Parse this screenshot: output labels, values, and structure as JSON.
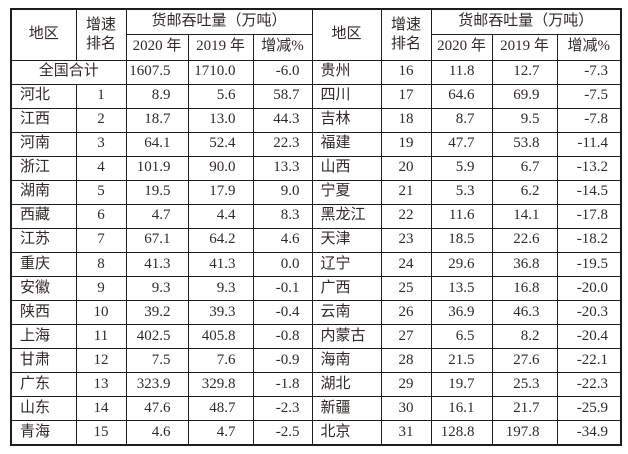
{
  "table": {
    "header": {
      "region": "地区",
      "rank_line1": "增速",
      "rank_line2": "排名",
      "group": "货邮吞吐量（万吨）",
      "col_2020": "2020 年",
      "col_2019": "2019 年",
      "col_change": "增减%"
    },
    "left_rows": [
      {
        "region": "全国合计",
        "rank": "",
        "v2020": "1607.5",
        "v2019": "1710.0",
        "chg": "-6.0",
        "merged": true
      },
      {
        "region": "河北",
        "rank": "1",
        "v2020": "8.9",
        "v2019": "5.6",
        "chg": "58.7"
      },
      {
        "region": "江西",
        "rank": "2",
        "v2020": "18.7",
        "v2019": "13.0",
        "chg": "44.3"
      },
      {
        "region": "河南",
        "rank": "3",
        "v2020": "64.1",
        "v2019": "52.4",
        "chg": "22.3"
      },
      {
        "region": "浙江",
        "rank": "4",
        "v2020": "101.9",
        "v2019": "90.0",
        "chg": "13.3"
      },
      {
        "region": "湖南",
        "rank": "5",
        "v2020": "19.5",
        "v2019": "17.9",
        "chg": "9.0"
      },
      {
        "region": "西藏",
        "rank": "6",
        "v2020": "4.7",
        "v2019": "4.4",
        "chg": "8.3"
      },
      {
        "region": "江苏",
        "rank": "7",
        "v2020": "67.1",
        "v2019": "64.2",
        "chg": "4.6"
      },
      {
        "region": "重庆",
        "rank": "8",
        "v2020": "41.3",
        "v2019": "41.3",
        "chg": "0.0"
      },
      {
        "region": "安徽",
        "rank": "9",
        "v2020": "9.3",
        "v2019": "9.3",
        "chg": "-0.1"
      },
      {
        "region": "陕西",
        "rank": "10",
        "v2020": "39.2",
        "v2019": "39.3",
        "chg": "-0.4"
      },
      {
        "region": "上海",
        "rank": "11",
        "v2020": "402.5",
        "v2019": "405.8",
        "chg": "-0.8"
      },
      {
        "region": "甘肃",
        "rank": "12",
        "v2020": "7.5",
        "v2019": "7.6",
        "chg": "-0.9"
      },
      {
        "region": "广东",
        "rank": "13",
        "v2020": "323.9",
        "v2019": "329.8",
        "chg": "-1.8"
      },
      {
        "region": "山东",
        "rank": "14",
        "v2020": "47.6",
        "v2019": "48.7",
        "chg": "-2.3"
      },
      {
        "region": "青海",
        "rank": "15",
        "v2020": "4.6",
        "v2019": "4.7",
        "chg": "-2.5"
      }
    ],
    "right_rows": [
      {
        "region": "贵州",
        "rank": "16",
        "v2020": "11.8",
        "v2019": "12.7",
        "chg": "-7.3"
      },
      {
        "region": "四川",
        "rank": "17",
        "v2020": "64.6",
        "v2019": "69.9",
        "chg": "-7.5"
      },
      {
        "region": "吉林",
        "rank": "18",
        "v2020": "8.7",
        "v2019": "9.5",
        "chg": "-7.8"
      },
      {
        "region": "福建",
        "rank": "19",
        "v2020": "47.7",
        "v2019": "53.8",
        "chg": "-11.4"
      },
      {
        "region": "山西",
        "rank": "20",
        "v2020": "5.9",
        "v2019": "6.7",
        "chg": "-13.2"
      },
      {
        "region": "宁夏",
        "rank": "21",
        "v2020": "5.3",
        "v2019": "6.2",
        "chg": "-14.5"
      },
      {
        "region": "黑龙江",
        "rank": "22",
        "v2020": "11.6",
        "v2019": "14.1",
        "chg": "-17.8"
      },
      {
        "region": "天津",
        "rank": "23",
        "v2020": "18.5",
        "v2019": "22.6",
        "chg": "-18.2"
      },
      {
        "region": "辽宁",
        "rank": "24",
        "v2020": "29.6",
        "v2019": "36.8",
        "chg": "-19.5"
      },
      {
        "region": "广西",
        "rank": "25",
        "v2020": "13.5",
        "v2019": "16.8",
        "chg": "-20.0"
      },
      {
        "region": "云南",
        "rank": "26",
        "v2020": "36.9",
        "v2019": "46.3",
        "chg": "-20.3"
      },
      {
        "region": "内蒙古",
        "rank": "27",
        "v2020": "6.5",
        "v2019": "8.2",
        "chg": "-20.4"
      },
      {
        "region": "海南",
        "rank": "28",
        "v2020": "21.5",
        "v2019": "27.6",
        "chg": "-22.1"
      },
      {
        "region": "湖北",
        "rank": "29",
        "v2020": "19.7",
        "v2019": "25.3",
        "chg": "-22.3"
      },
      {
        "region": "新疆",
        "rank": "30",
        "v2020": "16.1",
        "v2019": "21.7",
        "chg": "-25.9"
      },
      {
        "region": "北京",
        "rank": "31",
        "v2020": "128.8",
        "v2019": "197.8",
        "chg": "-34.9"
      }
    ],
    "colors": {
      "border": "#1d1d1d",
      "text": "#302a26",
      "background": "#ffffff"
    }
  }
}
